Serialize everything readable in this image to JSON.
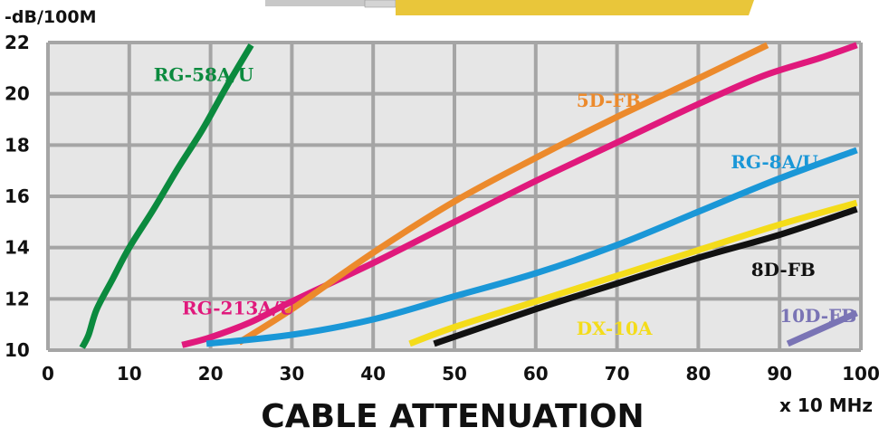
{
  "chart_data": {
    "type": "line",
    "title": "CABLE ATTENUATION",
    "ylabel": "-dB/100M",
    "xlabel": "x 10 MHz",
    "xlim": [
      0,
      100
    ],
    "ylim": [
      10,
      22
    ],
    "xticks": [
      0,
      10,
      20,
      30,
      40,
      50,
      60,
      70,
      80,
      90,
      100
    ],
    "yticks": [
      10,
      12,
      14,
      16,
      18,
      20,
      22
    ],
    "grid": true,
    "plot_background": "#e6e6e6",
    "grid_color": "#a5a5a5",
    "series": [
      {
        "name": "RG-58A/U",
        "color": "#0b8a3e",
        "points": [
          [
            4.2,
            10.1
          ],
          [
            5.0,
            10.6
          ],
          [
            6.0,
            11.6
          ],
          [
            8.0,
            12.8
          ],
          [
            10.0,
            14.0
          ],
          [
            13.0,
            15.5
          ],
          [
            16.0,
            17.1
          ],
          [
            19.0,
            18.6
          ],
          [
            22.0,
            20.3
          ],
          [
            25.0,
            21.9
          ]
        ]
      },
      {
        "name": "RG-213A/U",
        "color": "#e0197c",
        "points": [
          [
            16.5,
            10.2
          ],
          [
            20.0,
            10.5
          ],
          [
            25.0,
            11.1
          ],
          [
            30.0,
            11.9
          ],
          [
            40.0,
            13.4
          ],
          [
            50.0,
            15.0
          ],
          [
            60.0,
            16.6
          ],
          [
            70.0,
            18.1
          ],
          [
            80.0,
            19.6
          ],
          [
            88.0,
            20.7
          ],
          [
            95.0,
            21.4
          ],
          [
            99.5,
            21.9
          ]
        ]
      },
      {
        "name": "5D-FB",
        "color": "#ec8a2c",
        "points": [
          [
            23.5,
            10.3
          ],
          [
            30.0,
            11.6
          ],
          [
            40.0,
            13.8
          ],
          [
            50.0,
            15.8
          ],
          [
            60.0,
            17.5
          ],
          [
            70.0,
            19.1
          ],
          [
            80.0,
            20.6
          ],
          [
            88.5,
            21.9
          ]
        ]
      },
      {
        "name": "RG-8A/U",
        "color": "#1a97d7",
        "points": [
          [
            19.5,
            10.25
          ],
          [
            30.0,
            10.6
          ],
          [
            40.0,
            11.2
          ],
          [
            50.0,
            12.1
          ],
          [
            60.0,
            13.0
          ],
          [
            70.0,
            14.1
          ],
          [
            80.0,
            15.4
          ],
          [
            90.0,
            16.7
          ],
          [
            99.5,
            17.8
          ]
        ]
      },
      {
        "name": "DX-10A",
        "color": "#f4dc1a",
        "points": [
          [
            44.5,
            10.25
          ],
          [
            50.0,
            10.9
          ],
          [
            60.0,
            11.9
          ],
          [
            70.0,
            12.9
          ],
          [
            80.0,
            13.9
          ],
          [
            90.0,
            14.9
          ],
          [
            99.5,
            15.75
          ]
        ]
      },
      {
        "name": "8D-FB",
        "color": "#111111",
        "points": [
          [
            47.5,
            10.25
          ],
          [
            60.0,
            11.6
          ],
          [
            70.0,
            12.6
          ],
          [
            80.0,
            13.6
          ],
          [
            90.0,
            14.5
          ],
          [
            99.5,
            15.5
          ]
        ]
      },
      {
        "name": "10D-FB",
        "color": "#7a74b5",
        "points": [
          [
            91.0,
            10.25
          ],
          [
            99.5,
            11.45
          ]
        ]
      }
    ],
    "annotations": [
      {
        "text": "RG-58A/U",
        "x": 13,
        "y": 20.5,
        "color": "#0b8a3e"
      },
      {
        "text": "RG-213A/U",
        "x": 16.5,
        "y": 11.4,
        "color": "#e0197c"
      },
      {
        "text": "5D-FB",
        "x": 65,
        "y": 19.5,
        "color": "#ec8a2c"
      },
      {
        "text": "RG-8A/U",
        "x": 84,
        "y": 17.1,
        "color": "#1a97d7"
      },
      {
        "text": "DX-10A",
        "x": 65,
        "y": 10.6,
        "color": "#f4dc1a"
      },
      {
        "text": "8D-FB",
        "x": 86.5,
        "y": 12.9,
        "color": "#111111"
      },
      {
        "text": "10D-FB",
        "x": 90,
        "y": 11.1,
        "color": "#7a74b5"
      }
    ]
  }
}
